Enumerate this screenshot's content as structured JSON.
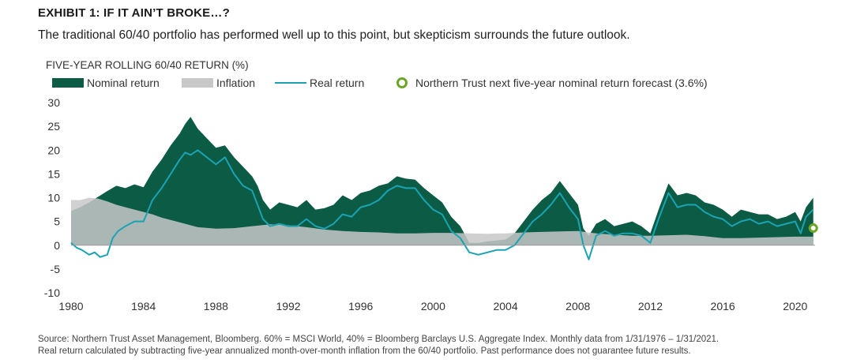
{
  "header": {
    "exhibit_title": "EXHIBIT 1: IF IT AIN’T BROKE…?",
    "subtitle": "The traditional 60/40 portfolio has performed well up to this point, but skepticism surrounds the future outlook."
  },
  "chart_label": "FIVE-YEAR ROLLING  60/40 RETURN  (%)",
  "legend": {
    "nominal": "Nominal return",
    "inflation": "Inflation",
    "real": "Real return",
    "forecast": "Northern Trust next five-year nominal return forecast (3.6%)"
  },
  "colors": {
    "nominal": "#0b5b45",
    "inflation": "#c8c8c8",
    "real": "#1aa3b3",
    "forecast": "#6aa626",
    "axis": "#999999"
  },
  "footnote": {
    "line1": "Source: Northern Trust Asset Management, Bloomberg. 60% = MSCI World, 40% = Bloomberg Barclays U.S. Aggregate Index. Monthly data from 1/31/1976 – 1/31/2021.",
    "line2": "Real return calculated by subtracting five-year annualized month-over-month inflation from the 60/40 portfolio. Past performance does not guarantee future results."
  },
  "chart_data": {
    "type": "area",
    "title": "FIVE-YEAR ROLLING  60/40 RETURN  (%)",
    "xlim": [
      1980,
      2021.1
    ],
    "ylim": [
      -10,
      30
    ],
    "y_ticks": [
      -10,
      -5,
      0,
      5,
      10,
      15,
      20,
      25,
      30
    ],
    "x_ticks": [
      1980,
      1984,
      1988,
      1992,
      1996,
      2000,
      2004,
      2008,
      2012,
      2016,
      2020
    ],
    "y_tick_labels": [
      "-10",
      "-5",
      "0",
      "5",
      "10",
      "15",
      "20",
      "25",
      "30"
    ],
    "x_tick_labels": [
      "1980",
      "1984",
      "1988",
      "1992",
      "1996",
      "2000",
      "2004",
      "2008",
      "2012",
      "2016",
      "2020"
    ],
    "grid": false,
    "series": [
      {
        "name": "Nominal return",
        "kind": "area",
        "x": [
          1980.0,
          1980.5,
          1981.0,
          1981.5,
          1982.0,
          1982.5,
          1983.0,
          1983.5,
          1984.0,
          1984.5,
          1985.0,
          1985.5,
          1986.0,
          1986.3,
          1986.6,
          1987.0,
          1987.5,
          1988.0,
          1988.5,
          1989.0,
          1989.5,
          1990.0,
          1990.3,
          1990.6,
          1991.0,
          1991.5,
          1992.0,
          1992.5,
          1993.0,
          1993.5,
          1994.0,
          1994.5,
          1995.0,
          1995.5,
          1996.0,
          1996.5,
          1997.0,
          1997.5,
          1998.0,
          1998.5,
          1999.0,
          1999.5,
          2000.0,
          2000.5,
          2001.0,
          2001.5,
          2002.0,
          2002.5,
          2003.0,
          2003.5,
          2004.0,
          2004.5,
          2005.0,
          2005.5,
          2006.0,
          2006.5,
          2007.0,
          2007.5,
          2008.0,
          2008.3,
          2008.6,
          2009.0,
          2009.5,
          2010.0,
          2010.5,
          2011.0,
          2011.5,
          2012.0,
          2012.5,
          2013.0,
          2013.5,
          2014.0,
          2014.5,
          2015.0,
          2015.5,
          2016.0,
          2016.5,
          2017.0,
          2017.5,
          2018.0,
          2018.5,
          2019.0,
          2019.5,
          2020.0,
          2020.3,
          2020.6,
          2021.0
        ],
        "values": [
          7.2,
          8.0,
          9.0,
          10.2,
          11.4,
          12.5,
          12.0,
          12.8,
          12.2,
          15.5,
          18.0,
          21.0,
          23.5,
          25.5,
          27.0,
          24.5,
          22.5,
          20.5,
          21.0,
          18.5,
          16.5,
          14.5,
          12.5,
          9.5,
          7.5,
          9.0,
          8.5,
          8.0,
          9.5,
          7.5,
          7.8,
          8.5,
          10.5,
          9.5,
          11.0,
          11.5,
          12.5,
          13.0,
          14.5,
          14.0,
          13.8,
          12.0,
          10.5,
          9.0,
          6.0,
          4.0,
          0.5,
          0.5,
          0.8,
          1.0,
          1.2,
          2.5,
          5.0,
          7.5,
          9.5,
          11.0,
          13.5,
          11.0,
          8.5,
          3.5,
          2.0,
          4.5,
          5.5,
          4.0,
          4.5,
          5.0,
          4.0,
          2.5,
          8.0,
          13.0,
          10.5,
          11.0,
          10.5,
          9.0,
          8.5,
          7.5,
          6.0,
          7.5,
          7.0,
          6.5,
          6.5,
          5.5,
          6.0,
          7.0,
          5.0,
          8.0,
          10.0
        ]
      },
      {
        "name": "Inflation",
        "kind": "area",
        "x": [
          1980.0,
          1980.5,
          1981.0,
          1981.5,
          1982.0,
          1982.5,
          1983.0,
          1983.5,
          1984.0,
          1984.5,
          1985.0,
          1986.0,
          1987.0,
          1988.0,
          1989.0,
          1990.0,
          1991.0,
          1992.0,
          1993.0,
          1994.0,
          1995.0,
          1996.0,
          1997.0,
          1998.0,
          1999.0,
          2000.0,
          2001.0,
          2002.0,
          2003.0,
          2004.0,
          2005.0,
          2006.0,
          2007.0,
          2008.0,
          2009.0,
          2010.0,
          2011.0,
          2012.0,
          2013.0,
          2014.0,
          2015.0,
          2016.0,
          2017.0,
          2018.0,
          2019.0,
          2020.0,
          2021.0
        ],
        "values": [
          9.5,
          9.5,
          10.0,
          9.8,
          9.2,
          8.5,
          8.0,
          7.5,
          7.0,
          6.5,
          5.8,
          4.8,
          3.8,
          3.5,
          3.6,
          4.0,
          4.4,
          4.2,
          3.8,
          3.3,
          3.0,
          2.8,
          2.7,
          2.5,
          2.5,
          2.6,
          2.6,
          2.5,
          2.4,
          2.5,
          2.7,
          2.8,
          2.9,
          3.0,
          2.5,
          2.2,
          2.0,
          2.0,
          2.1,
          2.2,
          1.9,
          1.5,
          1.5,
          1.6,
          1.7,
          1.8,
          1.8
        ]
      },
      {
        "name": "Real return",
        "kind": "line",
        "x": [
          1980.0,
          1980.3,
          1980.6,
          1981.0,
          1981.3,
          1981.6,
          1982.0,
          1982.3,
          1982.6,
          1983.0,
          1983.5,
          1984.0,
          1984.5,
          1985.0,
          1985.5,
          1986.0,
          1986.3,
          1986.6,
          1987.0,
          1987.5,
          1988.0,
          1988.5,
          1989.0,
          1989.5,
          1990.0,
          1990.3,
          1990.6,
          1991.0,
          1991.5,
          1992.0,
          1992.5,
          1993.0,
          1993.5,
          1994.0,
          1994.5,
          1995.0,
          1995.5,
          1996.0,
          1996.5,
          1997.0,
          1997.5,
          1998.0,
          1998.5,
          1999.0,
          1999.5,
          2000.0,
          2000.5,
          2001.0,
          2001.5,
          2002.0,
          2002.5,
          2003.0,
          2003.5,
          2004.0,
          2004.5,
          2005.0,
          2005.5,
          2006.0,
          2006.5,
          2007.0,
          2007.5,
          2008.0,
          2008.3,
          2008.6,
          2009.0,
          2009.5,
          2010.0,
          2010.5,
          2011.0,
          2011.5,
          2012.0,
          2012.5,
          2013.0,
          2013.5,
          2014.0,
          2014.5,
          2015.0,
          2015.5,
          2016.0,
          2016.5,
          2017.0,
          2017.5,
          2018.0,
          2018.5,
          2019.0,
          2019.5,
          2020.0,
          2020.3,
          2020.6,
          2021.0
        ],
        "values": [
          0.5,
          -0.5,
          -1.0,
          -2.0,
          -1.5,
          -2.5,
          -2.0,
          1.5,
          3.0,
          4.0,
          5.0,
          5.0,
          9.5,
          12.0,
          15.0,
          18.0,
          19.5,
          19.0,
          20.0,
          18.5,
          17.0,
          18.5,
          15.0,
          12.5,
          11.5,
          8.5,
          5.5,
          4.0,
          4.5,
          4.0,
          4.0,
          5.5,
          4.0,
          3.5,
          4.5,
          6.5,
          6.0,
          8.0,
          8.5,
          9.5,
          11.5,
          12.5,
          12.0,
          12.0,
          9.5,
          7.5,
          6.5,
          3.0,
          1.5,
          -1.5,
          -2.0,
          -1.5,
          -1.0,
          -1.0,
          0.0,
          2.5,
          5.0,
          6.5,
          8.5,
          11.0,
          8.0,
          5.5,
          0.0,
          -3.0,
          2.0,
          3.0,
          2.0,
          2.5,
          2.5,
          2.0,
          0.5,
          6.0,
          11.0,
          8.0,
          8.5,
          8.5,
          7.0,
          6.0,
          5.5,
          4.0,
          5.0,
          5.5,
          4.5,
          5.0,
          4.0,
          4.5,
          5.0,
          2.5,
          6.0,
          7.5
        ]
      }
    ],
    "forecast": {
      "name": "Northern Trust next five-year nominal return forecast (3.6%)",
      "x": 2021.0,
      "y": 3.6
    }
  }
}
